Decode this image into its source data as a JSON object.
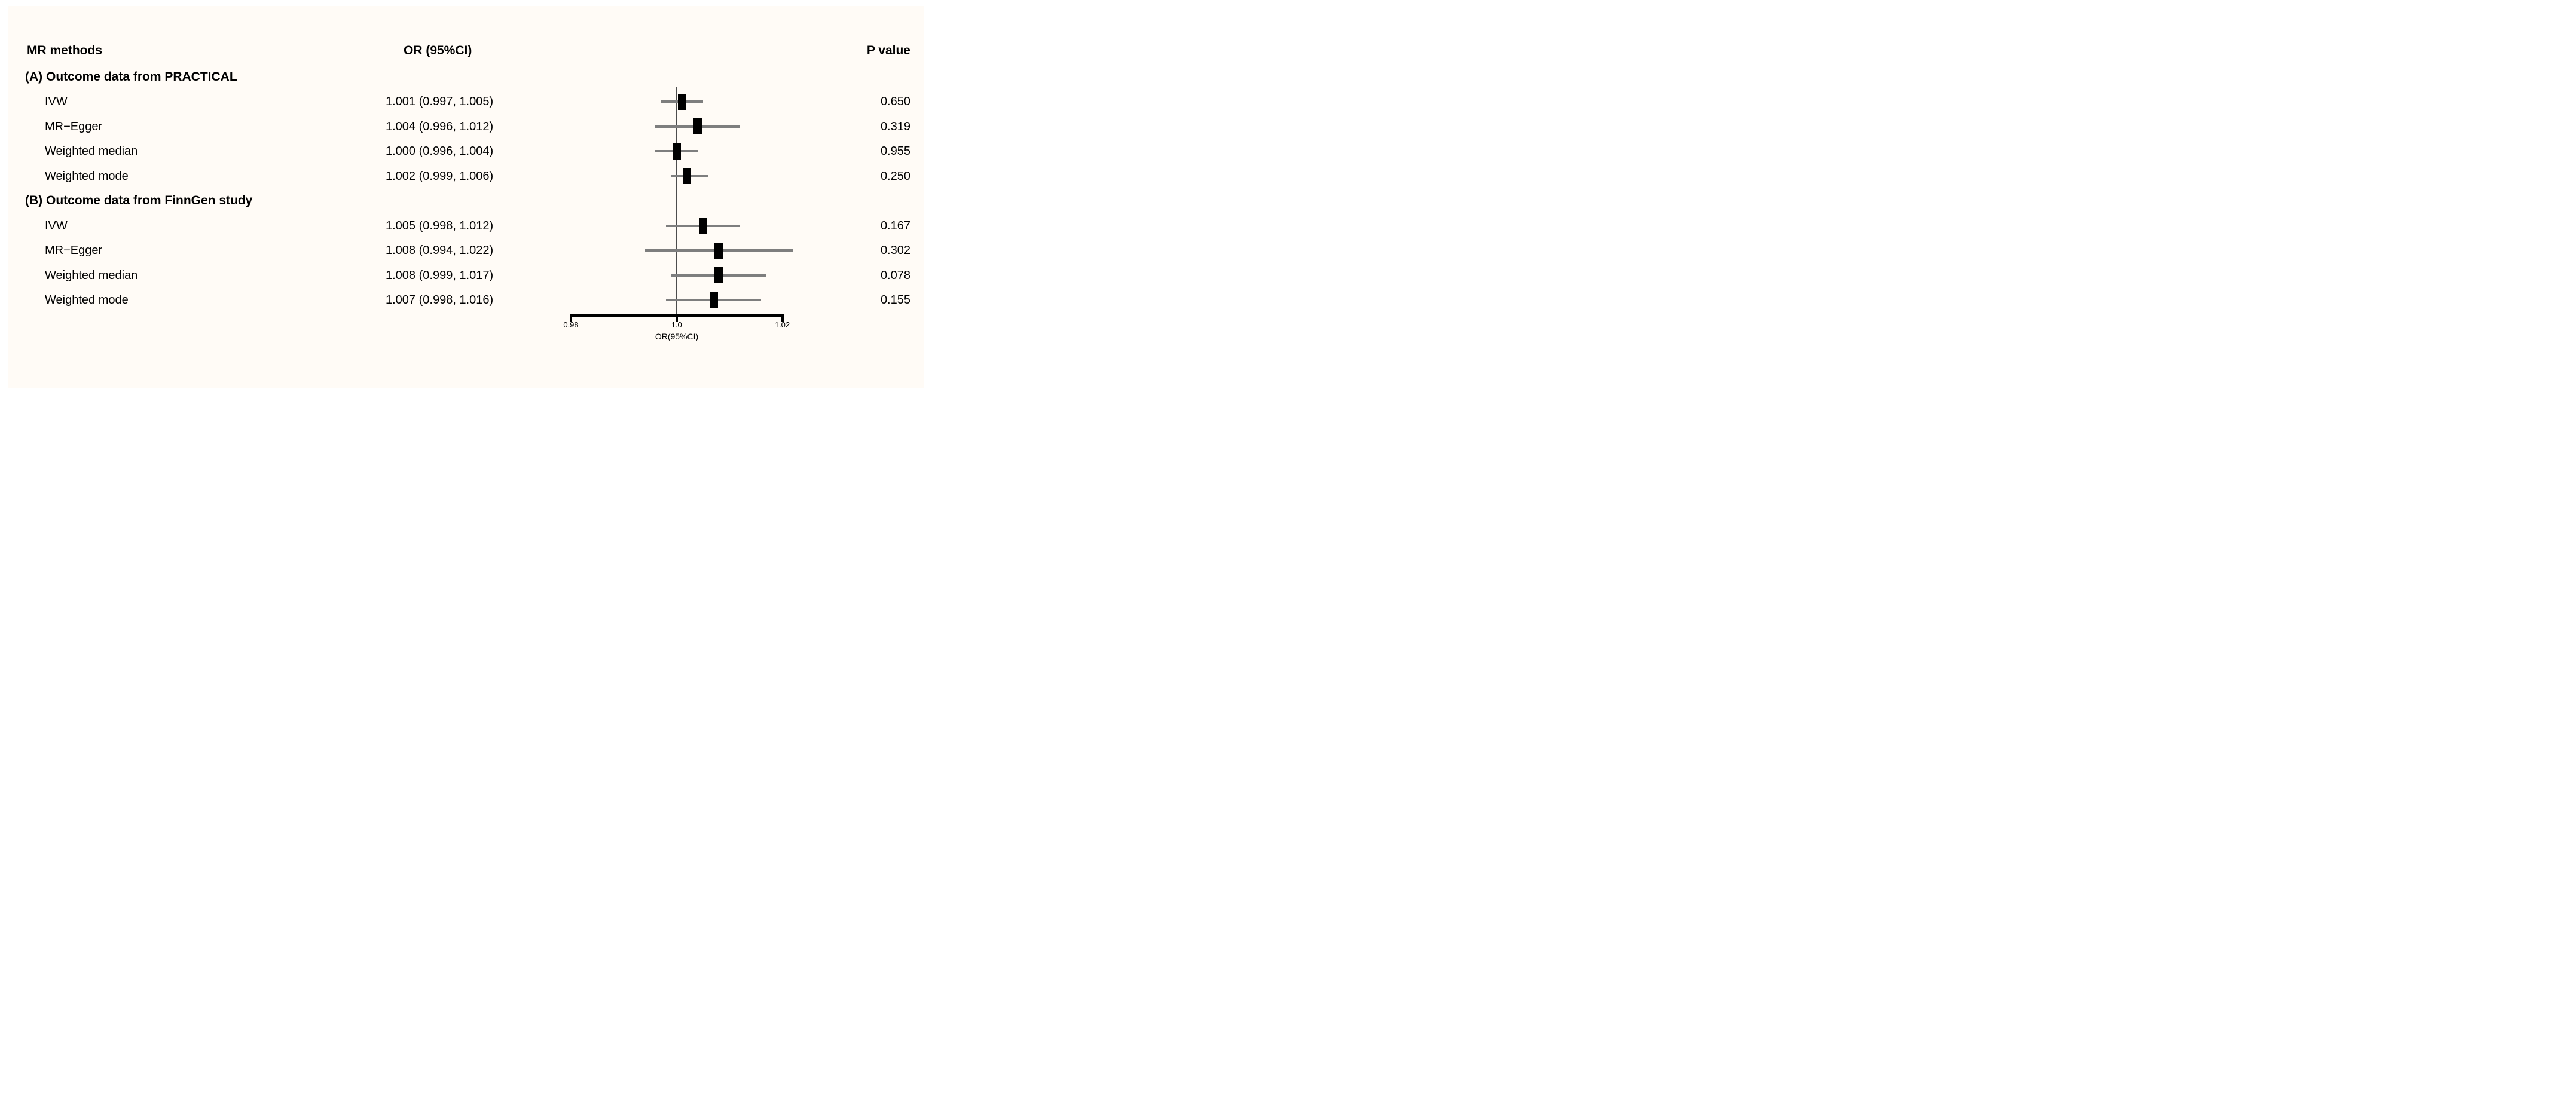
{
  "figure": {
    "background_color": "#FFFBF6",
    "text_color": "#000000",
    "whisker_color": "#7E7E7E",
    "reference_line_color": "#4D4D4D"
  },
  "columns": {
    "methods": "MR methods",
    "or_ci": "OR (95%CI)",
    "p": "P value"
  },
  "chart_data": {
    "type": "scatter",
    "subtype": "forest-plot",
    "title": "",
    "xlabel": "OR(95%CI)",
    "ylabel": "",
    "xlim": [
      0.98,
      1.02
    ],
    "x_ticks": [
      0.98,
      1.0,
      1.02
    ],
    "x_tick_labels": [
      "0.98",
      "1.0",
      "1.02"
    ],
    "reference_line_x": 1.0,
    "grid": false,
    "legend": false,
    "groups": [
      {
        "label": "(A) Outcome data from PRACTICAL",
        "rows": [
          {
            "method": "IVW",
            "or": 1.001,
            "ci_low": 0.997,
            "ci_high": 1.005,
            "or_text": "1.001 (0.997, 1.005)",
            "p_value": "0.650"
          },
          {
            "method": "MR−Egger",
            "or": 1.004,
            "ci_low": 0.996,
            "ci_high": 1.012,
            "or_text": "1.004 (0.996, 1.012)",
            "p_value": "0.319"
          },
          {
            "method": "Weighted median",
            "or": 1.0,
            "ci_low": 0.996,
            "ci_high": 1.004,
            "or_text": "1.000 (0.996, 1.004)",
            "p_value": "0.955"
          },
          {
            "method": "Weighted mode",
            "or": 1.002,
            "ci_low": 0.999,
            "ci_high": 1.006,
            "or_text": "1.002 (0.999, 1.006)",
            "p_value": "0.250"
          }
        ]
      },
      {
        "label": "(B) Outcome data from FinnGen study",
        "rows": [
          {
            "method": "IVW",
            "or": 1.005,
            "ci_low": 0.998,
            "ci_high": 1.012,
            "or_text": "1.005 (0.998, 1.012)",
            "p_value": "0.167"
          },
          {
            "method": "MR−Egger",
            "or": 1.008,
            "ci_low": 0.994,
            "ci_high": 1.022,
            "or_text": "1.008 (0.994, 1.022)",
            "p_value": "0.302"
          },
          {
            "method": "Weighted median",
            "or": 1.008,
            "ci_low": 0.999,
            "ci_high": 1.017,
            "or_text": "1.008 (0.999, 1.017)",
            "p_value": "0.078"
          },
          {
            "method": "Weighted mode",
            "or": 1.007,
            "ci_low": 0.998,
            "ci_high": 1.016,
            "or_text": "1.007 (0.998, 1.016)",
            "p_value": "0.155"
          }
        ]
      }
    ]
  }
}
